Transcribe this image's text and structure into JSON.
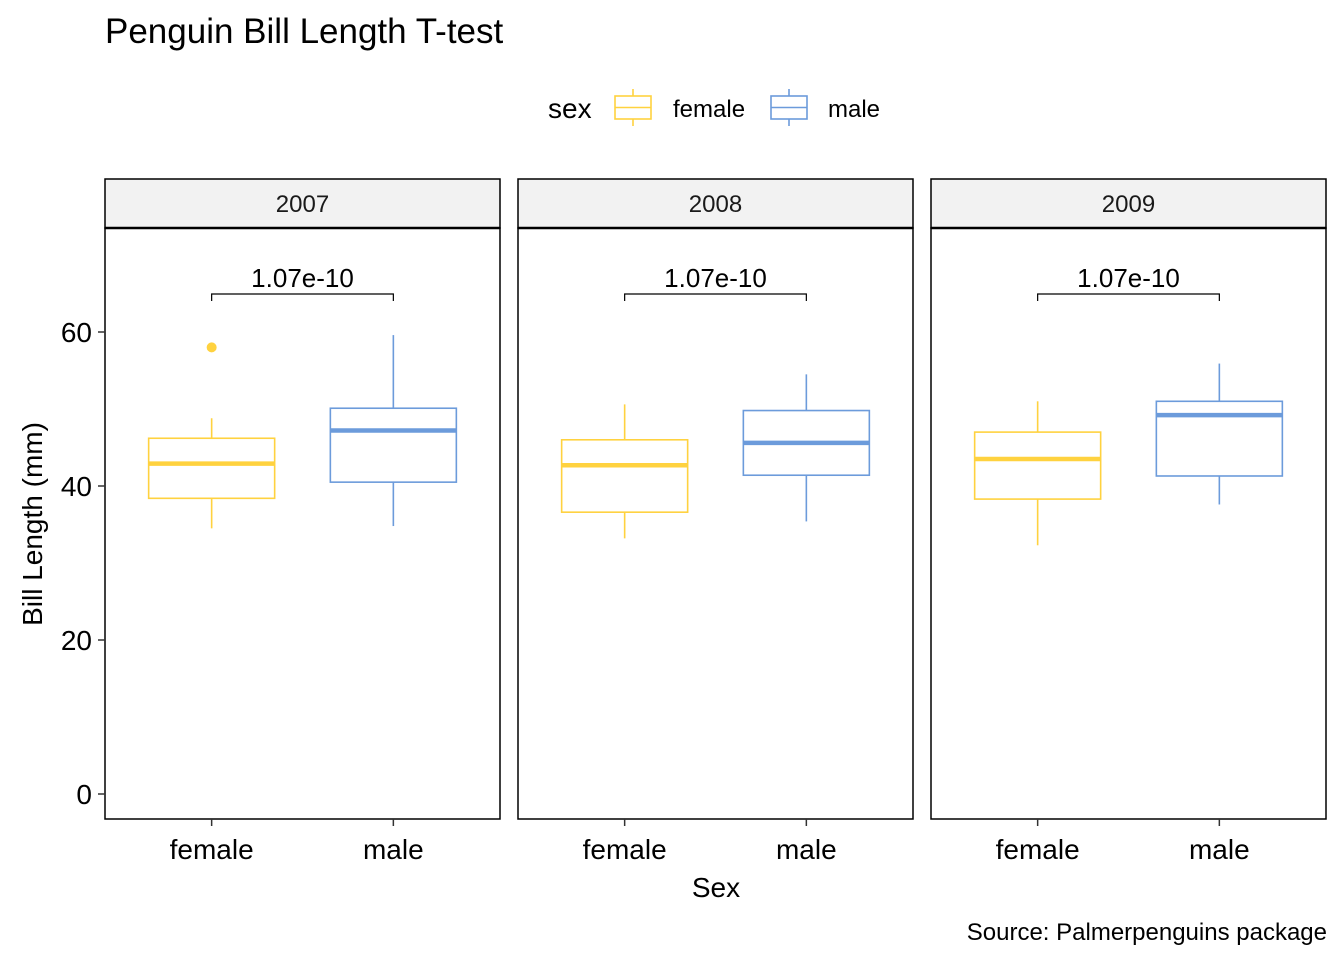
{
  "colors": {
    "female": "#FFD23F",
    "male": "#6C9BDB",
    "strip_fill": "#F2F2F2",
    "frame": "#000000",
    "bracket": "#000000"
  },
  "legend": {
    "title": "sex",
    "position": "top",
    "entries": [
      "female",
      "male"
    ]
  },
  "chart_data": {
    "type": "boxplot",
    "title": "Penguin Bill Length T-test",
    "xlabel": "Sex",
    "ylabel": "Bill Length (mm)",
    "caption": "Source: Palmerpenguins package",
    "ylim": [
      -3,
      74
    ],
    "yticks": [
      0,
      20,
      40,
      60
    ],
    "categories": [
      "female",
      "male"
    ],
    "grid": false,
    "panels": [
      {
        "label": "2007",
        "pvalue": "1.07e-10",
        "boxes": [
          {
            "group": "female",
            "min": 34.5,
            "q1": 38.4,
            "median": 42.9,
            "q3": 46.2,
            "max": 48.8,
            "outliers": [
              58.0
            ]
          },
          {
            "group": "male",
            "min": 34.8,
            "q1": 40.5,
            "median": 47.2,
            "q3": 50.1,
            "max": 59.6,
            "outliers": []
          }
        ]
      },
      {
        "label": "2008",
        "pvalue": "1.07e-10",
        "boxes": [
          {
            "group": "female",
            "min": 33.2,
            "q1": 36.6,
            "median": 42.7,
            "q3": 46.0,
            "max": 50.6,
            "outliers": []
          },
          {
            "group": "male",
            "min": 35.4,
            "q1": 41.4,
            "median": 45.6,
            "q3": 49.8,
            "max": 54.5,
            "outliers": []
          }
        ]
      },
      {
        "label": "2009",
        "pvalue": "1.07e-10",
        "boxes": [
          {
            "group": "female",
            "min": 32.3,
            "q1": 38.3,
            "median": 43.5,
            "q3": 47.0,
            "max": 51.0,
            "outliers": []
          },
          {
            "group": "male",
            "min": 37.6,
            "q1": 41.3,
            "median": 49.2,
            "q3": 51.0,
            "max": 55.9,
            "outliers": []
          }
        ]
      }
    ]
  }
}
